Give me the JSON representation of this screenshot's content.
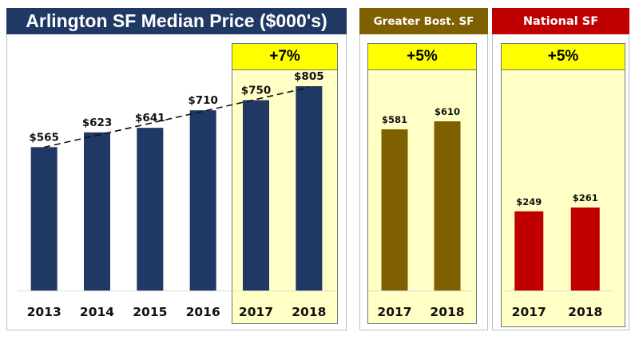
{
  "chart_data": [
    {
      "type": "bar",
      "title": "Arlington SF Median Price ($000's)",
      "categories": [
        "2013",
        "2014",
        "2015",
        "2016",
        "2017",
        "2018"
      ],
      "values": [
        565,
        623,
        641,
        710,
        750,
        805
      ],
      "data_labels": [
        "$565",
        "$623",
        "$641",
        "$710",
        "$750",
        "$805"
      ],
      "color": "#1f3864",
      "trendline": "linear, dashed",
      "highlight": {
        "categories": [
          "2017",
          "2018"
        ],
        "label": "+7%"
      },
      "xlabel": "",
      "ylabel": "",
      "ylim": [
        0,
        805
      ],
      "grid": false
    },
    {
      "type": "bar",
      "title": "Greater  Bost. SF",
      "categories": [
        "2017",
        "2018"
      ],
      "values": [
        581,
        610
      ],
      "data_labels": [
        "$581",
        "$610"
      ],
      "color": "#7f6000",
      "highlight": {
        "categories": [
          "2017",
          "2018"
        ],
        "label": "+5%"
      },
      "xlabel": "",
      "ylabel": "",
      "ylim": [
        0,
        610
      ],
      "grid": false
    },
    {
      "type": "bar",
      "title": "National SF",
      "categories": [
        "2017",
        "2018"
      ],
      "values": [
        249,
        261
      ],
      "data_labels": [
        "$249",
        "$261"
      ],
      "color": "#c00000",
      "highlight": {
        "categories": [
          "2017",
          "2018"
        ],
        "label": "+5%"
      },
      "xlabel": "",
      "ylabel": "",
      "ylim": [
        0,
        261
      ],
      "grid": false
    }
  ]
}
